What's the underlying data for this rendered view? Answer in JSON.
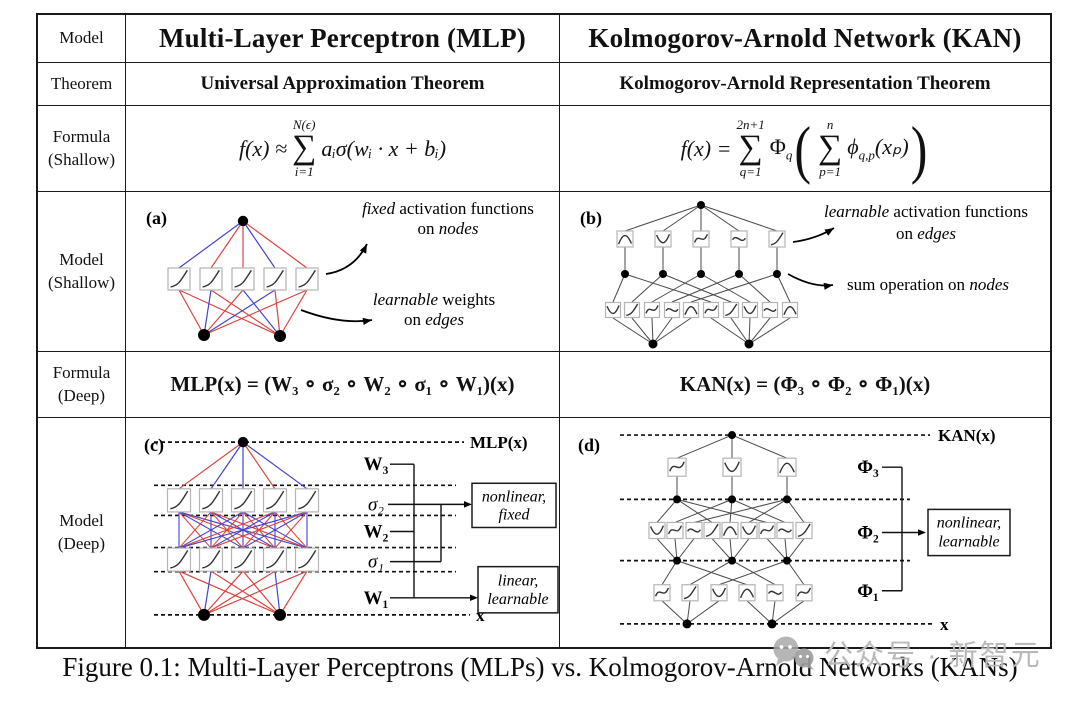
{
  "header": {
    "label": "Model",
    "mlp_title": "Multi-Layer Perceptron (MLP)",
    "kan_title": "Kolmogorov-Arnold Network (KAN)"
  },
  "theorem": {
    "label": "Theorem",
    "mlp": "Universal Approximation Theorem",
    "kan": "Kolmogorov-Arnold Representation Theorem"
  },
  "formula_shallow": {
    "label": [
      "Formula",
      "(Shallow)"
    ],
    "mlp": {
      "lhs": "f(x) ≈",
      "sum_sup": "N(ϵ)",
      "sigma": "∑",
      "sum_sub": "i=1",
      "rhs": "aᵢσ(wᵢ · x + bᵢ)"
    },
    "kan": {
      "lhs": "f(x) =",
      "sum1_sup": "2n+1",
      "sigma1": "∑",
      "sum1_sub": "q=1",
      "phi": "Φ",
      "phi_sub": "q",
      "lparen": "(",
      "sum2_sup": "n",
      "sigma2": "∑",
      "sum2_sub": "p=1",
      "phi2": "ϕ",
      "phi2_sub": "q,p",
      "arg": "(xₚ)",
      "rparen": ")"
    }
  },
  "model_shallow": {
    "label": [
      "Model",
      "(Shallow)"
    ],
    "mlp": {
      "tag": "(a)",
      "ann_fixed": {
        "em": "fixed",
        "rest": " activation functions",
        "l2a": "on ",
        "l2b": "nodes"
      },
      "ann_weights": {
        "em": "learnable",
        "rest": " weights",
        "l2a": "on ",
        "l2b": "edges"
      }
    },
    "kan": {
      "tag": "(b)",
      "ann_act": {
        "em": "learnable",
        "rest": " activation functions",
        "l2a": "on ",
        "l2b": "edges"
      },
      "ann_sum": {
        "a": "sum operation on ",
        "b": "nodes"
      }
    }
  },
  "formula_deep": {
    "label": [
      "Formula",
      "(Deep)"
    ],
    "mlp": "MLP(x) = (W₃ ∘ σ₂ ∘ W₂ ∘ σ₁ ∘ W₁)(x)",
    "kan": "KAN(x) = (Φ₃ ∘ Φ₂ ∘ Φ₁)(x)"
  },
  "model_deep": {
    "label": [
      "Model",
      "(Deep)"
    ],
    "mlp": {
      "tag": "(c)",
      "top_label": "MLP(x)",
      "w3": "W₃",
      "s2": "σ₂",
      "w2": "W₂",
      "s1": "σ₁",
      "w1": "W₁",
      "x_label": "x",
      "box_nonlinear": [
        "nonlinear,",
        "fixed"
      ],
      "box_linear": [
        "linear,",
        "learnable"
      ]
    },
    "kan": {
      "tag": "(d)",
      "top_label": "KAN(x)",
      "p3": "Φ₃",
      "p2": "Φ₂",
      "p1": "Φ₁",
      "x_label": "x",
      "box_nonlinear": [
        "nonlinear,",
        "learnable"
      ]
    }
  },
  "caption": "Figure 0.1: Multi-Layer Perceptrons (MLPs) vs. Kolmogorov-Arnold Networks (KANs)",
  "watermark": {
    "text": "公众号 · 新智元"
  },
  "colors": {
    "red": "#d9453f",
    "blue": "#4444cc",
    "edge_gray": "#4a4a4a",
    "watermark_gray": "#b9b9b9"
  }
}
